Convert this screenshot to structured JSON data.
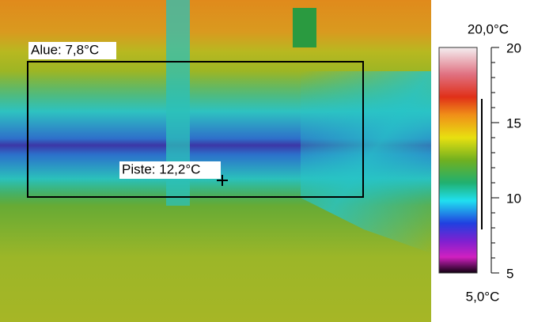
{
  "image": {
    "area_label": "Alue: 7,8°C",
    "spot_label": "Piste: 12,2°C"
  },
  "scale": {
    "max_label": "20,0°C",
    "min_label": "5,0°C",
    "ticks": [
      20,
      15,
      10,
      5
    ]
  }
}
